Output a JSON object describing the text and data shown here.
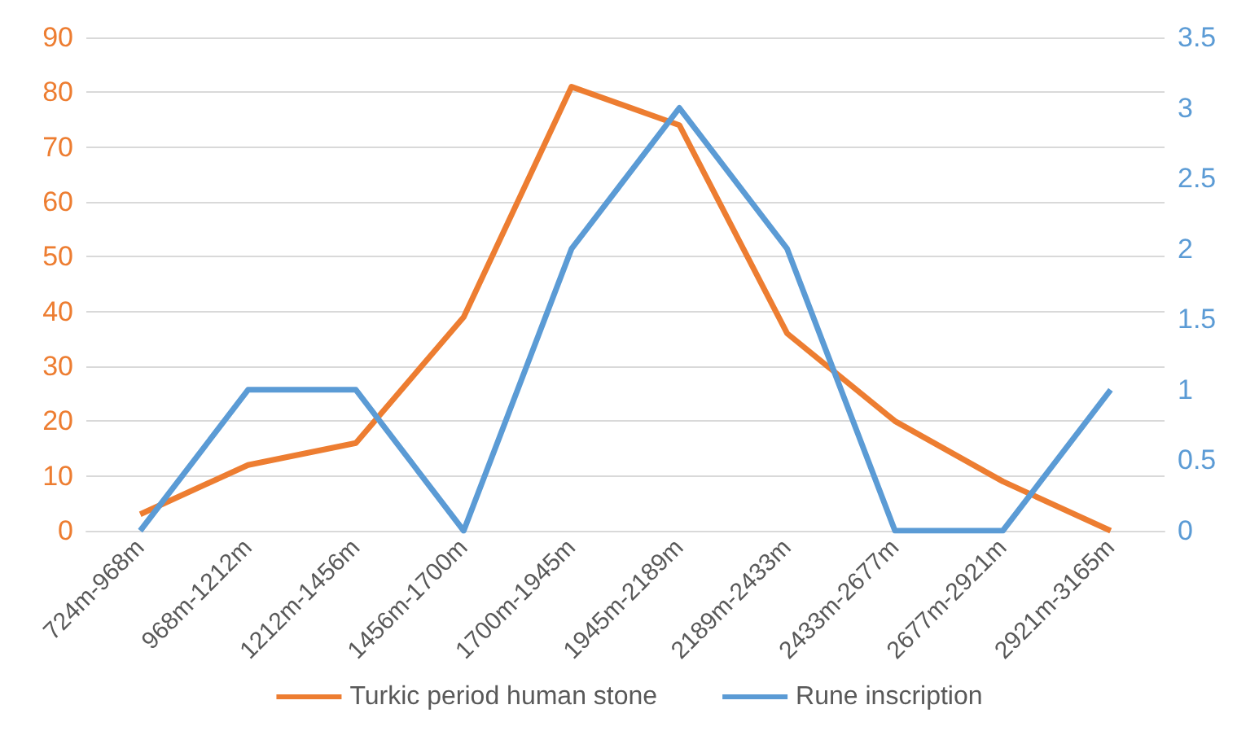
{
  "chart_data": {
    "type": "line",
    "categories": [
      "724m-968m",
      "968m-1212m",
      "1212m-1456m",
      "1456m-1700m",
      "1700m-1945m",
      "1945m-2189m",
      "2189m-2433m",
      "2433m-2677m",
      "2677m-2921m",
      "2921m-3165m"
    ],
    "series": [
      {
        "name": "Turkic period human stone",
        "color": "#ed7d31",
        "values": [
          3,
          12,
          16,
          39,
          81,
          74,
          36,
          20,
          9,
          0
        ]
      },
      {
        "name": "Rune inscription",
        "color": "#5b9bd5",
        "axis": "y2",
        "values": [
          0,
          1,
          1,
          0,
          2,
          3,
          2,
          0,
          0,
          1
        ]
      }
    ],
    "ylim": [
      0,
      90
    ],
    "yticks": [
      0,
      10,
      20,
      30,
      40,
      50,
      60,
      70,
      80,
      90
    ],
    "y2lim": [
      0,
      3.5
    ],
    "y2ticks": [
      0,
      0.5,
      1,
      1.5,
      2,
      2.5,
      3,
      3.5
    ],
    "grid": "y",
    "legend": "bottom",
    "marker": "none",
    "line_style": "solid"
  }
}
